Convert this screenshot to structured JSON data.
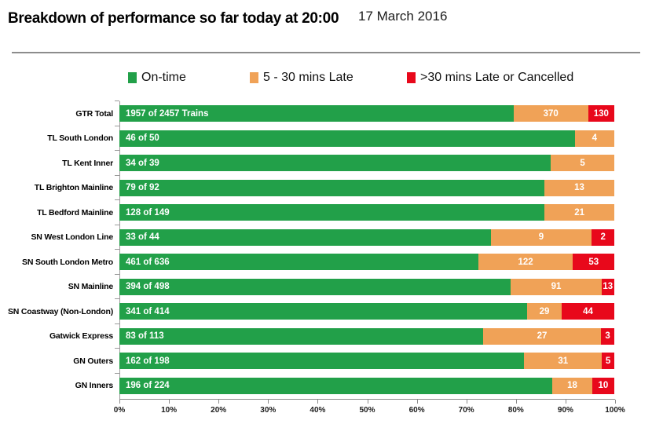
{
  "header": {
    "title": "Breakdown of performance so far today at 20:00",
    "date": "17 March 2016"
  },
  "legend": {
    "items": [
      {
        "name": "on-time",
        "label": "On-time",
        "color": "#22A049"
      },
      {
        "name": "late",
        "label": "5 - 30 mins Late",
        "color": "#F0A257"
      },
      {
        "name": "cancelled",
        "label": ">30 mins Late or Cancelled",
        "color": "#E8081B"
      }
    ]
  },
  "chart_data": {
    "type": "bar",
    "orientation": "horizontal",
    "stacked": true,
    "title": "Breakdown of performance so far today at 20:00",
    "xlabel": "",
    "ylabel": "",
    "xlim": [
      0,
      100
    ],
    "axis_ticks": [
      "0%",
      "10%",
      "20%",
      "30%",
      "40%",
      "50%",
      "60%",
      "70%",
      "80%",
      "90%",
      "100%"
    ],
    "legend_position": "top",
    "grid": false,
    "series_names": [
      "On-time",
      "5 - 30 mins Late",
      ">30 mins Late or Cancelled"
    ],
    "colors": {
      "on_time": "#22A049",
      "late": "#F0A257",
      "cancelled": "#E8081B"
    },
    "categories": [
      "GTR Total",
      "TL South London",
      "TL Kent Inner",
      "TL Brighton Mainline",
      "TL Bedford Mainline",
      "SN West London Line",
      "SN South London Metro",
      "SN Mainline",
      "SN Coastway (Non-London)",
      "Gatwick Express",
      "GN Outers",
      "GN Inners"
    ],
    "rows": [
      {
        "label": "GTR Total",
        "on_time": 1957,
        "total": 2457,
        "on_time_label": "1957 of 2457 Trains",
        "late": 370,
        "cancelled": 130
      },
      {
        "label": "TL South London",
        "on_time": 46,
        "total": 50,
        "on_time_label": "46 of 50",
        "late": 4,
        "cancelled": 0
      },
      {
        "label": "TL Kent Inner",
        "on_time": 34,
        "total": 39,
        "on_time_label": "34 of 39",
        "late": 5,
        "cancelled": 0
      },
      {
        "label": "TL Brighton Mainline",
        "on_time": 79,
        "total": 92,
        "on_time_label": "79 of 92",
        "late": 13,
        "cancelled": 0
      },
      {
        "label": "TL Bedford Mainline",
        "on_time": 128,
        "total": 149,
        "on_time_label": "128 of 149",
        "late": 21,
        "cancelled": 0
      },
      {
        "label": "SN West London Line",
        "on_time": 33,
        "total": 44,
        "on_time_label": "33 of 44",
        "late": 9,
        "cancelled": 2
      },
      {
        "label": "SN South London Metro",
        "on_time": 461,
        "total": 636,
        "on_time_label": "461 of 636",
        "late": 122,
        "cancelled": 53
      },
      {
        "label": "SN Mainline",
        "on_time": 394,
        "total": 498,
        "on_time_label": "394 of 498",
        "late": 91,
        "cancelled": 13
      },
      {
        "label": "SN Coastway (Non-London)",
        "on_time": 341,
        "total": 414,
        "on_time_label": "341 of 414",
        "late": 29,
        "cancelled": 44
      },
      {
        "label": "Gatwick Express",
        "on_time": 83,
        "total": 113,
        "on_time_label": "83 of 113",
        "late": 27,
        "cancelled": 3
      },
      {
        "label": "GN Outers",
        "on_time": 162,
        "total": 198,
        "on_time_label": "162 of 198",
        "late": 31,
        "cancelled": 5
      },
      {
        "label": "GN Inners",
        "on_time": 196,
        "total": 224,
        "on_time_label": "196 of 224",
        "late": 18,
        "cancelled": 10
      }
    ]
  }
}
